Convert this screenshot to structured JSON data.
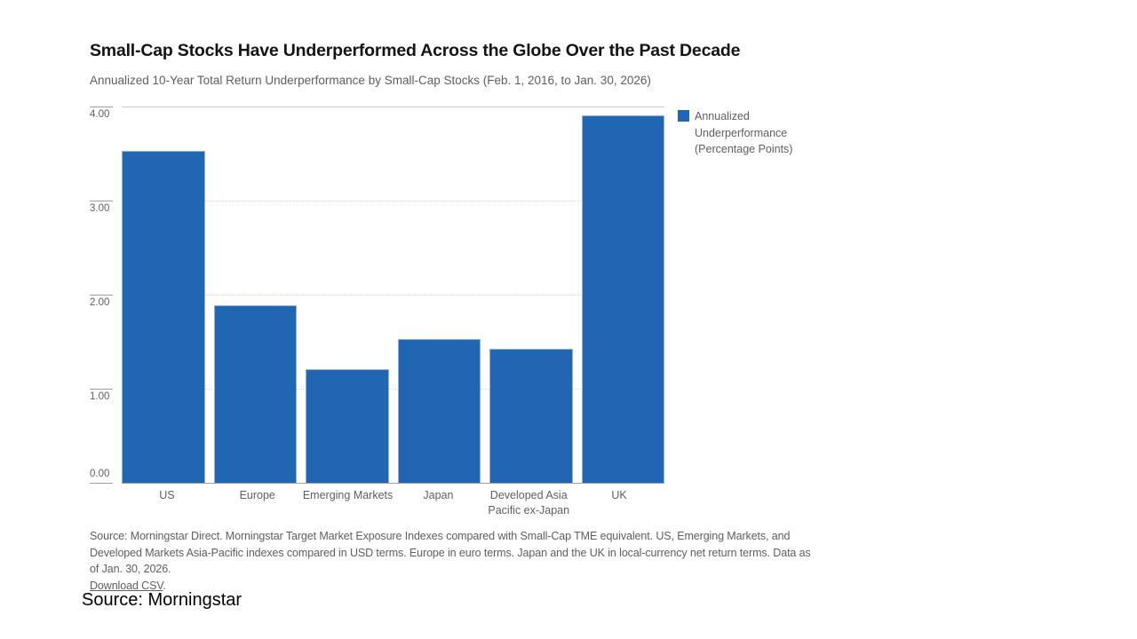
{
  "chart_data": {
    "type": "bar",
    "title": "Small-Cap Stocks Have Underperformed Across the Globe Over the Past Decade",
    "subtitle": "Annualized 10-Year Total Return Underperformance by Small-Cap Stocks (Feb. 1, 2016, to Jan. 30, 2026)",
    "categories": [
      "US",
      "Europe",
      "Emerging Markets",
      "Japan",
      "Developed Asia Pacific ex-Japan",
      "UK"
    ],
    "values": [
      3.53,
      1.89,
      1.21,
      1.53,
      1.42,
      3.91
    ],
    "xlabel": "",
    "ylabel": "",
    "ylim": [
      0,
      4
    ],
    "yticks": [
      {
        "label": "0.00",
        "value": 0
      },
      {
        "label": "1.00",
        "value": 1
      },
      {
        "label": "2.00",
        "value": 2
      },
      {
        "label": "3.00",
        "value": 3
      },
      {
        "label": "4.00",
        "value": 4
      }
    ],
    "grid": "horizontal dotted at 1.00/2.00/3.00; solid line at 4.00 top and 0.00 baseline",
    "legend": {
      "label": "Annualized Underperformance (Percentage Points)",
      "position": "top-right"
    }
  },
  "colors": {
    "bar": "#2166b3",
    "axis_text": "#5e5e5e",
    "title_text": "#141414",
    "grid_dotted": "#d9d9d9",
    "grid_top": "#c9c9c9",
    "baseline": "#9f9f9f",
    "caption_text": "#000000"
  },
  "footer": {
    "source_note": "Source: Morningstar Direct. Morningstar Target Market Exposure Indexes compared with Small-Cap TME equivalent. US, Emerging Markets, and Developed Markets Asia-Pacific indexes compared in USD terms. Europe in euro terms. Japan and the UK in local-currency net return terms. Data as of Jan. 30, 2026.",
    "download_link": "Download CSV",
    "link_suffix": "."
  },
  "caption": {
    "text": "Source: Morningstar"
  }
}
